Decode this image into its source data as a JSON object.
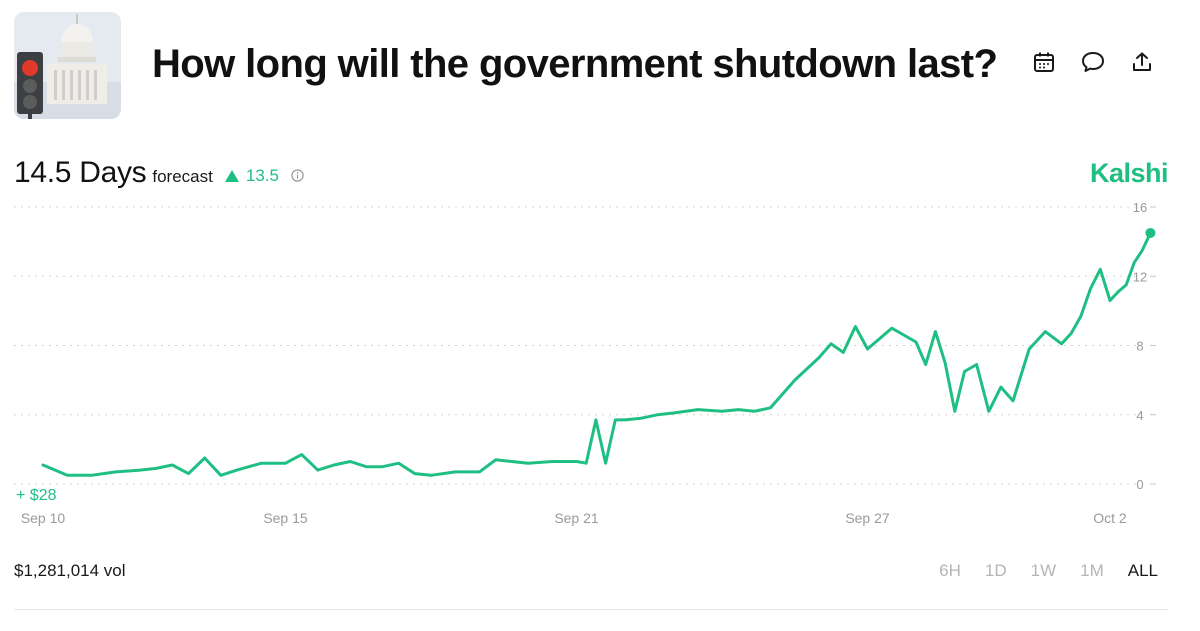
{
  "header": {
    "title": "How long will the government shutdown last?"
  },
  "forecast": {
    "value": "14.5 Days",
    "label": "forecast",
    "delta": "13.5"
  },
  "brand": "Kalshi",
  "footer": {
    "volume": "$1,281,014 vol",
    "ranges": [
      "6H",
      "1D",
      "1W",
      "1M",
      "ALL"
    ],
    "active_range": "ALL"
  },
  "colors": {
    "accent": "#1fbf84",
    "grid": "#d4d4d4",
    "axis_text": "#9a9a9a"
  },
  "chart_data": {
    "type": "line",
    "gain_label": "+ $28",
    "x_ticks": [
      "Sep 10",
      "Sep 15",
      "Sep 21",
      "Sep 27",
      "Oct 2"
    ],
    "y_ticks": [
      0,
      4,
      8,
      12,
      16
    ],
    "ylim": [
      0,
      16
    ],
    "xlim": [
      "Sep 10",
      "Oct 2"
    ],
    "grid": true,
    "series": [
      {
        "values": [
          [
            "Sep 10",
            1.1
          ],
          [
            "Sep 10",
            0.5
          ],
          [
            "Sep 11",
            0.5
          ],
          [
            "Sep 11",
            0.7
          ],
          [
            "Sep 12",
            0.8
          ],
          [
            "Sep 12",
            0.9
          ],
          [
            "Sep 12",
            1.1
          ],
          [
            "Sep 13",
            0.6
          ],
          [
            "Sep 13",
            1.5
          ],
          [
            "Sep 13",
            0.5
          ],
          [
            "Sep 14",
            0.8
          ],
          [
            "Sep 14",
            1.2
          ],
          [
            "Sep 15",
            1.2
          ],
          [
            "Sep 15",
            1.7
          ],
          [
            "Sep 15",
            0.8
          ],
          [
            "Sep 16",
            1.1
          ],
          [
            "Sep 16",
            1.3
          ],
          [
            "Sep 16",
            1.0
          ],
          [
            "Sep 17",
            1.0
          ],
          [
            "Sep 17",
            1.2
          ],
          [
            "Sep 17",
            0.6
          ],
          [
            "Sep 18",
            0.5
          ],
          [
            "Sep 18",
            0.7
          ],
          [
            "Sep 19",
            0.7
          ],
          [
            "Sep 19",
            1.4
          ],
          [
            "Sep 19",
            1.3
          ],
          [
            "Sep 20",
            1.2
          ],
          [
            "Sep 20",
            1.3
          ],
          [
            "Sep 21",
            1.3
          ],
          [
            "Sep 21",
            1.2
          ],
          [
            "Sep 21",
            3.7
          ],
          [
            "Sep 21",
            1.2
          ],
          [
            "Sep 21",
            3.7
          ],
          [
            "Sep 22",
            3.7
          ],
          [
            "Sep 22",
            3.8
          ],
          [
            "Sep 22",
            4.0
          ],
          [
            "Sep 23",
            4.1
          ],
          [
            "Sep 23",
            4.3
          ],
          [
            "Sep 24",
            4.2
          ],
          [
            "Sep 24",
            4.3
          ],
          [
            "Sep 24",
            4.2
          ],
          [
            "Sep 25",
            4.4
          ],
          [
            "Sep 25",
            6.0
          ],
          [
            "Sep 26",
            7.3
          ],
          [
            "Sep 26",
            8.1
          ],
          [
            "Sep 26",
            7.6
          ],
          [
            "Sep 26",
            9.1
          ],
          [
            "Sep 27",
            7.8
          ],
          [
            "Sep 27",
            9.0
          ],
          [
            "Sep 28",
            8.2
          ],
          [
            "Sep 28",
            6.9
          ],
          [
            "Sep 28",
            8.8
          ],
          [
            "Sep 28",
            7.0
          ],
          [
            "Sep 28",
            4.2
          ],
          [
            "Sep 29",
            6.5
          ],
          [
            "Sep 29",
            6.9
          ],
          [
            "Sep 29",
            4.2
          ],
          [
            "Sep 29",
            5.6
          ],
          [
            "Sep 30",
            4.8
          ],
          [
            "Sep 30",
            7.8
          ],
          [
            "Sep 30",
            8.8
          ],
          [
            "Oct 1",
            8.1
          ],
          [
            "Oct 1",
            8.7
          ],
          [
            "Oct 1",
            9.7
          ],
          [
            "Oct 1",
            11.3
          ],
          [
            "Oct 1",
            12.4
          ],
          [
            "Oct 2",
            10.6
          ],
          [
            "Oct 2",
            11.1
          ],
          [
            "Oct 2",
            11.5
          ],
          [
            "Oct 2",
            12.8
          ],
          [
            "Oct 2",
            13.5
          ],
          [
            "Oct 2",
            14.5
          ]
        ]
      }
    ]
  }
}
